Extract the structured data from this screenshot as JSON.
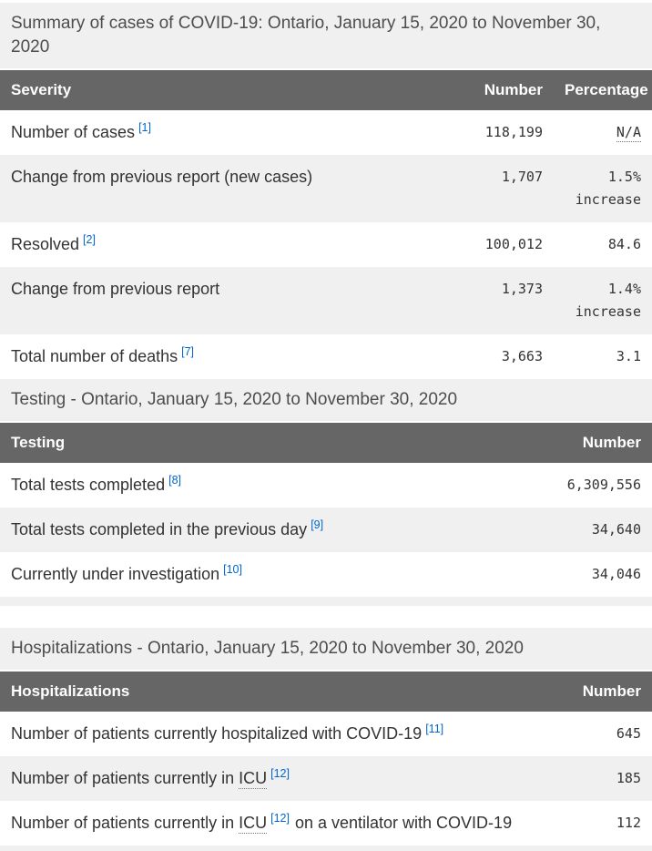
{
  "colors": {
    "header_bg": "#666666",
    "header_text": "#ffffff",
    "stripe_bg": "#f0f0f0",
    "caption_bg": "#f0f0f0",
    "link_blue": "#0066cc",
    "body_text": "#333333"
  },
  "summary": {
    "caption": "Summary of cases of COVID-19: Ontario, January 15, 2020 to November 30, 2020",
    "headers": {
      "severity": "Severity",
      "number": "Number",
      "percentage": "Percentage"
    },
    "rows": [
      {
        "label": "Number of cases",
        "footnote": "[1]",
        "number": "118,199",
        "percentage": "N/A"
      },
      {
        "label": "Change from previous report (new cases)",
        "number": "1,707",
        "percentage_value": "1.5%",
        "percentage_note": "increase"
      },
      {
        "label": "Resolved",
        "footnote": "[2]",
        "number": "100,012",
        "percentage": "84.6"
      },
      {
        "label": "Change from previous report",
        "number": "1,373",
        "percentage_value": "1.4%",
        "percentage_note": "increase"
      },
      {
        "label": "Total number of deaths",
        "footnote": "[7]",
        "number": "3,663",
        "percentage": "3.1"
      }
    ]
  },
  "testing": {
    "caption": "Testing - Ontario, January 15, 2020 to November 30, 2020",
    "headers": {
      "testing": "Testing",
      "number": "Number"
    },
    "rows": [
      {
        "label": "Total tests completed",
        "footnote": "[8]",
        "number": "6,309,556"
      },
      {
        "label": "Total tests completed in the previous day",
        "footnote": "[9]",
        "number": "34,640"
      },
      {
        "label": "Currently under investigation",
        "footnote": "[10]",
        "number": "34,046"
      }
    ]
  },
  "hospitalizations": {
    "caption": "Hospitalizations - Ontario, January 15, 2020 to November 30, 2020",
    "headers": {
      "hospitalizations": "Hospitalizations",
      "number": "Number"
    },
    "rows": [
      {
        "label": "Number of patients currently hospitalized with COVID-19",
        "footnote": "[11]",
        "number": "645"
      },
      {
        "label_pre": "Number of patients currently in",
        "abbr": "ICU",
        "footnote": "[12]",
        "number": "185"
      },
      {
        "label_pre": "Number of patients currently in",
        "abbr": "ICU",
        "footnote": "[12]",
        "label_post": "on a ventilator with COVID-19",
        "number": "112"
      }
    ]
  }
}
